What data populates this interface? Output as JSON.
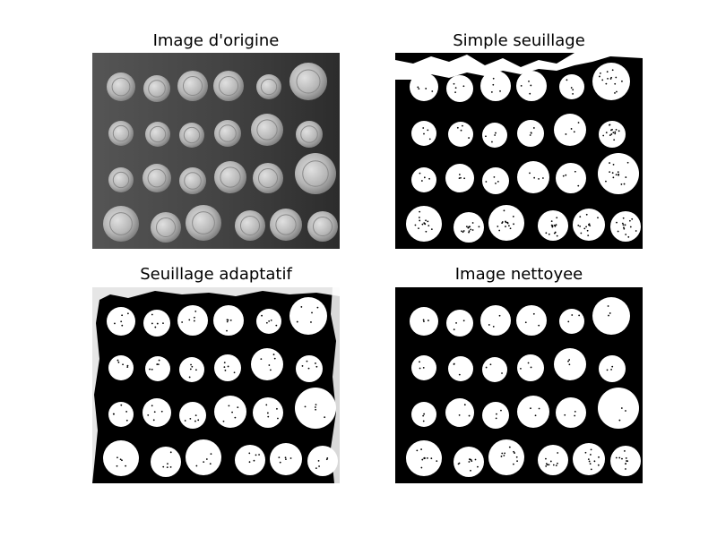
{
  "figure": {
    "panels": [
      {
        "title": "Image d'origine",
        "style": "grayscale"
      },
      {
        "title": "Simple seuillage",
        "style": "binary-simple"
      },
      {
        "title": "Seuillage adaptatif",
        "style": "binary-adaptive"
      },
      {
        "title": "Image nettoyee",
        "style": "binary-clean"
      }
    ],
    "colors": {
      "background": "#ffffff",
      "binary_foreground": "#ffffff",
      "binary_background": "#000000",
      "gray_background": "#4a4a4a",
      "coin_light": "#d2d2d2",
      "coin_dark": "#7a7a7a"
    }
  }
}
